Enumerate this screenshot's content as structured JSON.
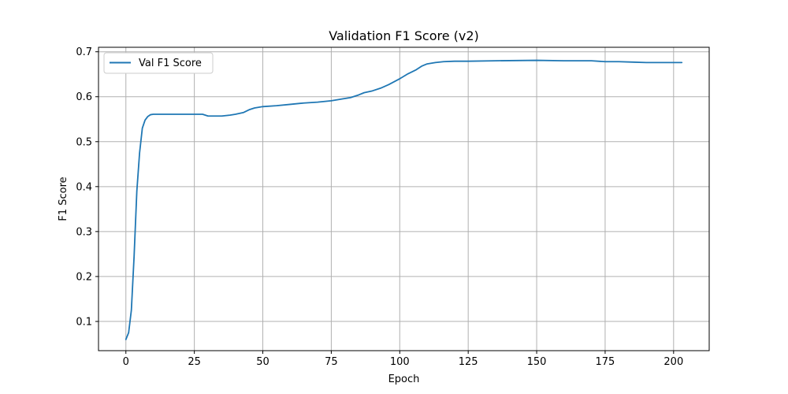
{
  "chart_data": {
    "type": "line",
    "title": "Validation F1 Score (v2)",
    "xlabel": "Epoch",
    "ylabel": "F1 Score",
    "xlim": [
      -10,
      213
    ],
    "ylim": [
      0.035,
      0.71
    ],
    "xticks": [
      0,
      25,
      50,
      75,
      100,
      125,
      150,
      175,
      200
    ],
    "yticks": [
      0.1,
      0.2,
      0.3,
      0.4,
      0.5,
      0.6,
      0.7
    ],
    "grid": true,
    "legend": "upper-left",
    "series": [
      {
        "name": "Val F1 Score",
        "color": "#1f77b4",
        "points": [
          [
            0,
            0.06
          ],
          [
            1,
            0.075
          ],
          [
            2,
            0.125
          ],
          [
            3,
            0.245
          ],
          [
            4,
            0.39
          ],
          [
            5,
            0.475
          ],
          [
            6,
            0.53
          ],
          [
            7,
            0.548
          ],
          [
            8,
            0.556
          ],
          [
            9,
            0.56
          ],
          [
            10,
            0.561
          ],
          [
            12,
            0.561
          ],
          [
            15,
            0.561
          ],
          [
            20,
            0.561
          ],
          [
            25,
            0.561
          ],
          [
            28,
            0.561
          ],
          [
            30,
            0.557
          ],
          [
            35,
            0.557
          ],
          [
            38,
            0.559
          ],
          [
            40,
            0.561
          ],
          [
            43,
            0.565
          ],
          [
            45,
            0.571
          ],
          [
            47,
            0.575
          ],
          [
            50,
            0.578
          ],
          [
            55,
            0.58
          ],
          [
            60,
            0.583
          ],
          [
            65,
            0.586
          ],
          [
            70,
            0.588
          ],
          [
            75,
            0.591
          ],
          [
            78,
            0.594
          ],
          [
            82,
            0.598
          ],
          [
            85,
            0.604
          ],
          [
            87,
            0.609
          ],
          [
            90,
            0.613
          ],
          [
            93,
            0.619
          ],
          [
            96,
            0.627
          ],
          [
            100,
            0.64
          ],
          [
            103,
            0.651
          ],
          [
            106,
            0.66
          ],
          [
            108,
            0.668
          ],
          [
            110,
            0.673
          ],
          [
            113,
            0.676
          ],
          [
            116,
            0.678
          ],
          [
            120,
            0.679
          ],
          [
            125,
            0.679
          ],
          [
            135,
            0.68
          ],
          [
            150,
            0.681
          ],
          [
            160,
            0.68
          ],
          [
            170,
            0.68
          ],
          [
            175,
            0.678
          ],
          [
            180,
            0.678
          ],
          [
            185,
            0.677
          ],
          [
            190,
            0.676
          ],
          [
            195,
            0.676
          ],
          [
            200,
            0.676
          ],
          [
            203,
            0.676
          ]
        ]
      }
    ]
  }
}
